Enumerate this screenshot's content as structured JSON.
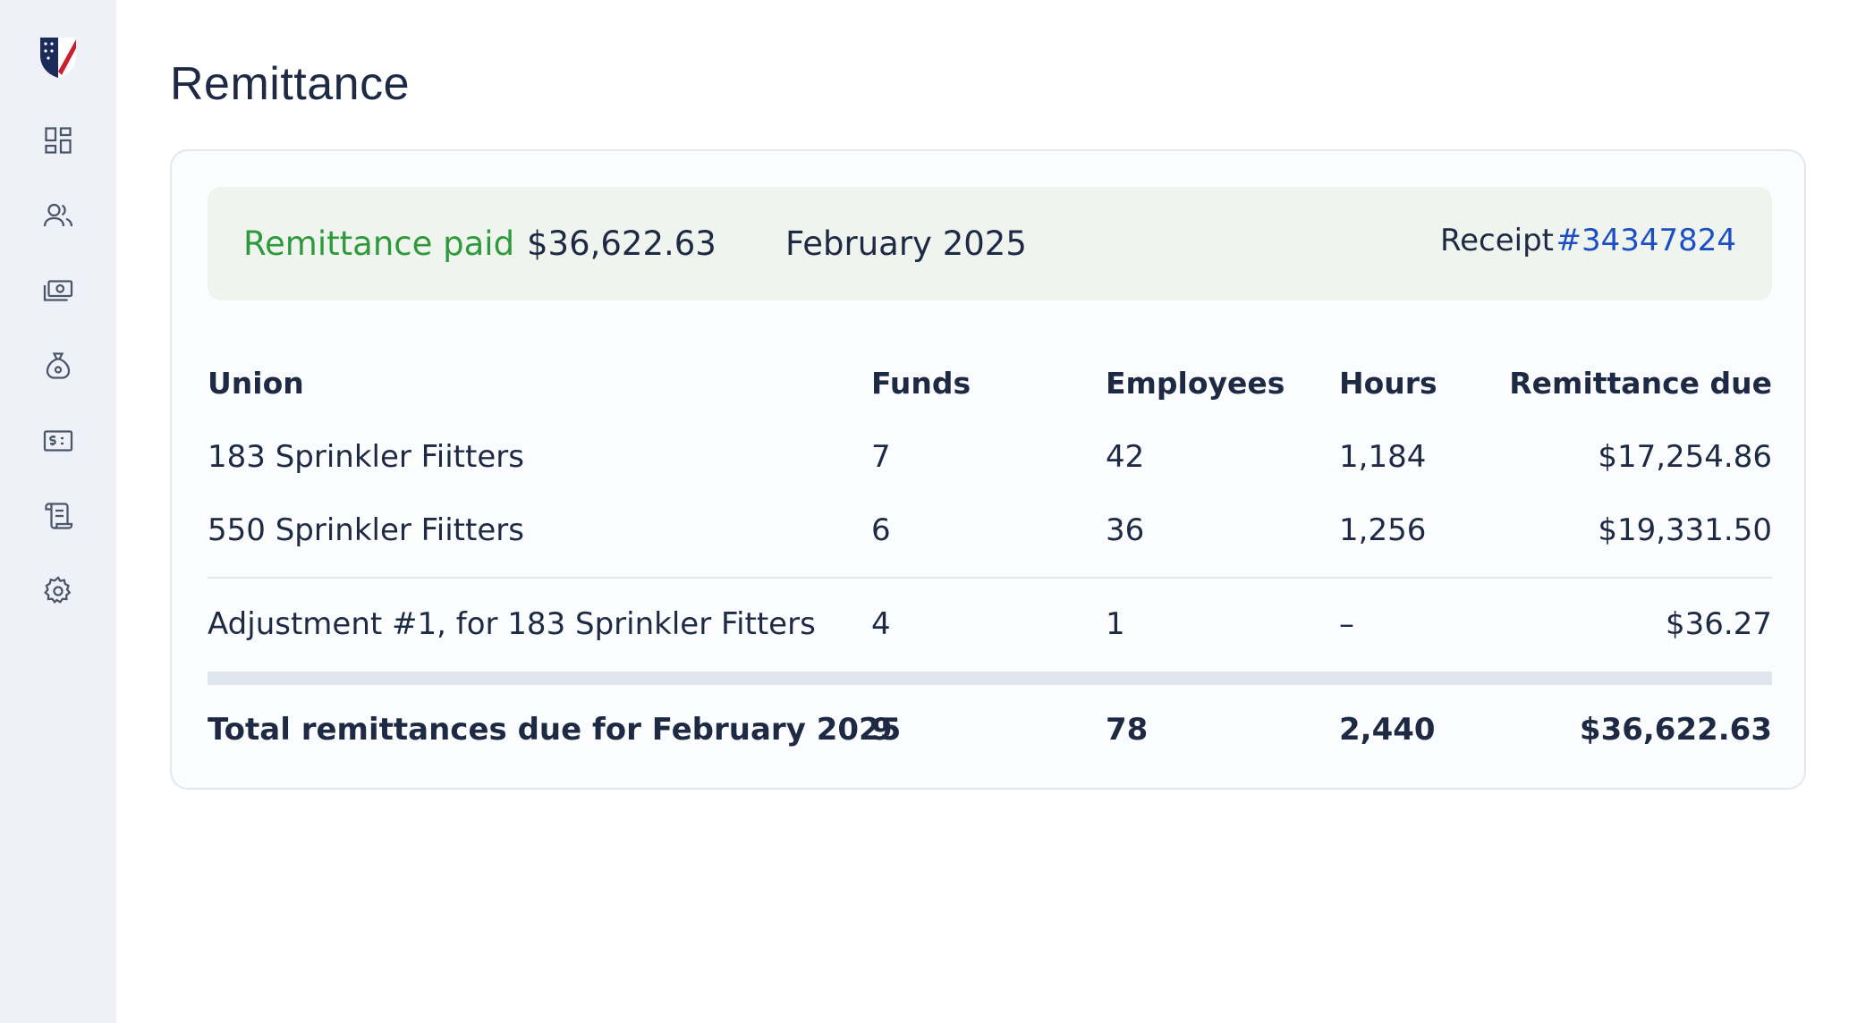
{
  "page": {
    "title": "Remittance"
  },
  "sidebar": {
    "items": [
      {
        "icon": "dashboard-icon"
      },
      {
        "icon": "users-icon"
      },
      {
        "icon": "money-icon"
      },
      {
        "icon": "money-bag-icon"
      },
      {
        "icon": "invoice-icon"
      },
      {
        "icon": "scroll-icon"
      },
      {
        "icon": "gear-icon"
      }
    ]
  },
  "banner": {
    "status": "Remittance paid",
    "amount": "$36,622.63",
    "period": "February 2025",
    "receipt_label": "Receipt",
    "receipt_number": "#34347824",
    "status_color": "#2f9a3c",
    "link_color": "#1d4fc4"
  },
  "table": {
    "headers": {
      "union": "Union",
      "funds": "Funds",
      "employees": "Employees",
      "hours": "Hours",
      "due": "Remittance due"
    },
    "rows": [
      {
        "union": "183 Sprinkler Fiitters",
        "funds": "7",
        "employees": "42",
        "hours": "1,184",
        "due": "$17,254.86"
      },
      {
        "union": "550 Sprinkler Fiitters",
        "funds": "6",
        "employees": "36",
        "hours": "1,256",
        "due": "$19,331.50"
      }
    ],
    "adjustment": {
      "union": "Adjustment #1, for 183 Sprinkler Fitters",
      "funds": "4",
      "employees": "1",
      "hours": "–",
      "due": "$36.27"
    },
    "total": {
      "label": "Total remittances due for February 2025",
      "funds": "9",
      "employees": "78",
      "hours": "2,440",
      "due": "$36,622.63"
    }
  }
}
